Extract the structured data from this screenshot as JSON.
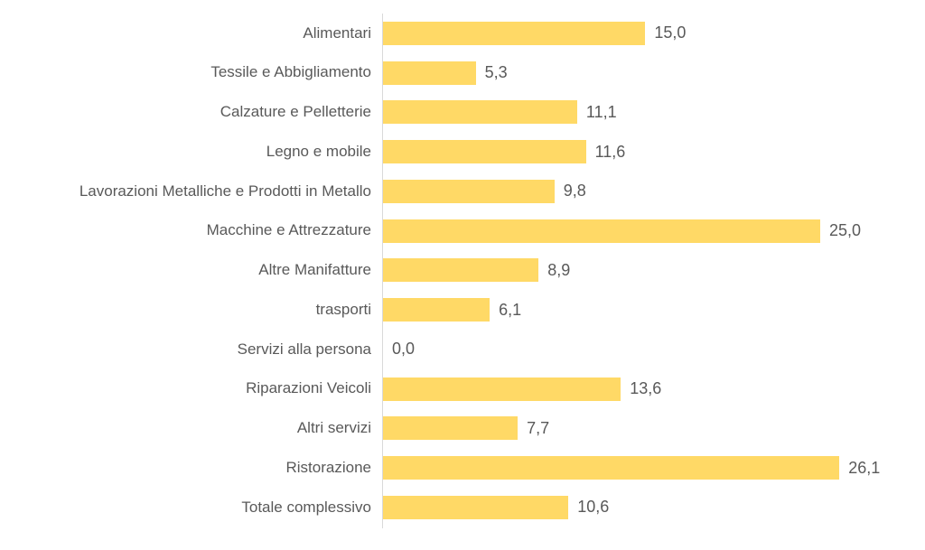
{
  "chart_data": {
    "type": "bar",
    "orientation": "horizontal",
    "title": "",
    "xlabel": "",
    "ylabel": "",
    "categories": [
      "Alimentari",
      "Tessile e Abbigliamento",
      "Calzature e Pelletterie",
      "Legno e mobile",
      "Lavorazioni Metalliche e Prodotti in Metallo",
      "Macchine e Attrezzature",
      "Altre Manifatture",
      "trasporti",
      "Servizi alla persona",
      "Riparazioni Veicoli",
      "Altri servizi",
      "Ristorazione",
      "Totale complessivo"
    ],
    "values": [
      15.0,
      5.3,
      11.1,
      11.6,
      9.8,
      25.0,
      8.9,
      6.1,
      0.0,
      13.6,
      7.7,
      26.1,
      10.6
    ],
    "value_labels": [
      "15,0",
      "5,3",
      "11,1",
      "11,6",
      "9,8",
      "25,0",
      "8,9",
      "6,1",
      "0,0",
      "13,6",
      "7,7",
      "26,1",
      "10,6"
    ],
    "xlim": [
      0,
      27.5
    ],
    "grid": false,
    "legend": false,
    "bar_color": "#FFD966",
    "axis_color": "#D9D9D9",
    "label_text_color": "#595959",
    "value_text_color": "#595959"
  }
}
